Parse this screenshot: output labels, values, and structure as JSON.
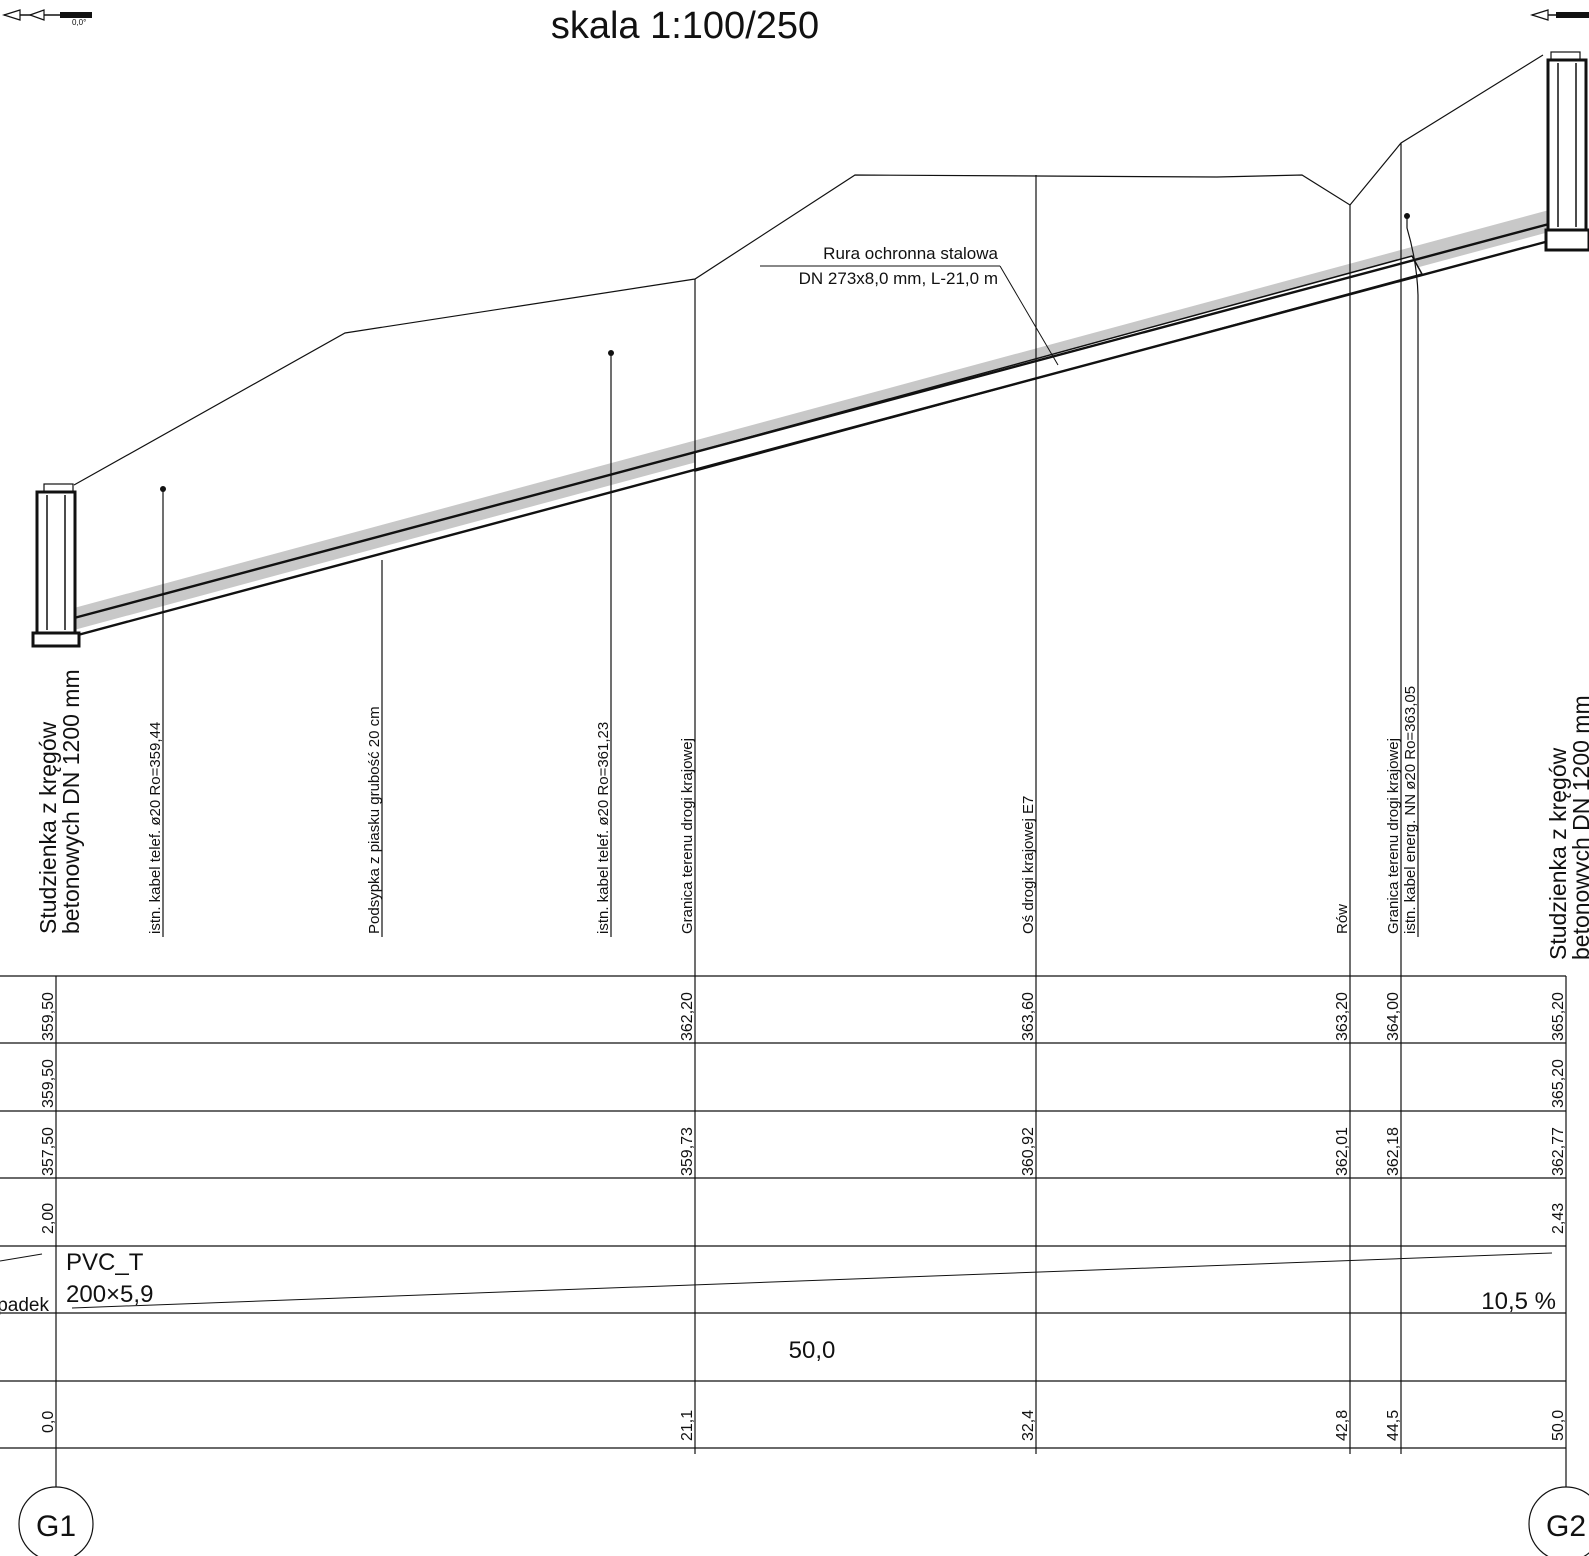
{
  "title": "skala 1:100/250",
  "pipe_callout": {
    "line1": "Rura ochronna stalowa",
    "line2": "DN 273x8,0 mm, L-21,0 m"
  },
  "wells": {
    "left_label_line1": "Studzienka z kręgów",
    "left_label_line2": "betonowych DN 1200 mm",
    "right_label_line1": "Studzienka z kręgów",
    "right_label_line2": "betonowych DN 1200 mm"
  },
  "feature_labels": [
    "istn. kabel telef.  ø20  Ro=359,44",
    "Podsypka z piasku grubość 20 cm",
    "istn. kabel telef.  ø20  Ro=361,23",
    "Granica terenu drogi krajowej",
    "Oś drogi krajowej E7",
    "Rów",
    "Granica terenu drogi krajowej",
    "istn. kabel energ. NN  ø20  Ro=363,05"
  ],
  "table": {
    "row1_values": [
      "359,50",
      "362,20",
      "363,60",
      "363,20",
      "364,00",
      "365,20"
    ],
    "row2_values": [
      "359,50",
      "365,20"
    ],
    "row3_values": [
      "357,50",
      "359,73",
      "360,92",
      "362,01",
      "362,18",
      "362,77"
    ],
    "row4_values": [
      "2,00",
      "2,43"
    ],
    "spadek_label": "padek",
    "pipe_material": "PVC_T",
    "pipe_size": "200×5,9",
    "slope_value": "10,5 %",
    "length_value": "50,0",
    "chainage_values": [
      "0,0",
      "21,1",
      "32,4",
      "42,8",
      "44,5",
      "50,0"
    ]
  },
  "node_labels": [
    "G1",
    "G2"
  ],
  "north_arrow_label": "0,0°"
}
